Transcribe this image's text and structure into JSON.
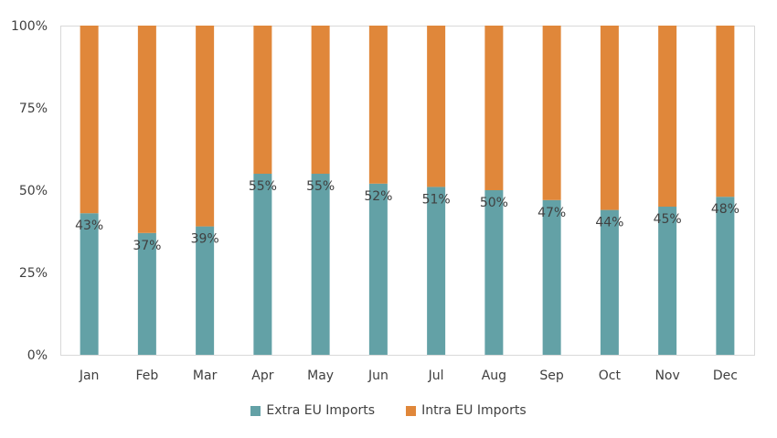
{
  "chart_data": {
    "type": "bar",
    "stacked": true,
    "percent_stacked": true,
    "title": "",
    "xlabel": "",
    "ylabel": "",
    "ylim": [
      0,
      100
    ],
    "y_ticks": [
      "0%",
      "25%",
      "50%",
      "75%",
      "100%"
    ],
    "y_tick_values": [
      0,
      25,
      50,
      75,
      100
    ],
    "grid": false,
    "legend_position": "bottom",
    "categories": [
      "Jan",
      "Feb",
      "Mar",
      "Apr",
      "May",
      "Jun",
      "Jul",
      "Aug",
      "Sep",
      "Oct",
      "Nov",
      "Dec"
    ],
    "series": [
      {
        "name": "Extra EU Imports",
        "color": "#63A1A6",
        "values": [
          43,
          37,
          39,
          55,
          55,
          52,
          51,
          50,
          47,
          44,
          45,
          48
        ],
        "data_labels": [
          "43%",
          "37%",
          "39%",
          "55%",
          "55%",
          "52%",
          "51%",
          "50%",
          "47%",
          "44%",
          "45%",
          "48%"
        ]
      },
      {
        "name": "Intra EU Imports",
        "color": "#E0873A",
        "values": [
          57,
          63,
          61,
          45,
          45,
          48,
          49,
          50,
          53,
          56,
          55,
          52
        ]
      }
    ]
  }
}
